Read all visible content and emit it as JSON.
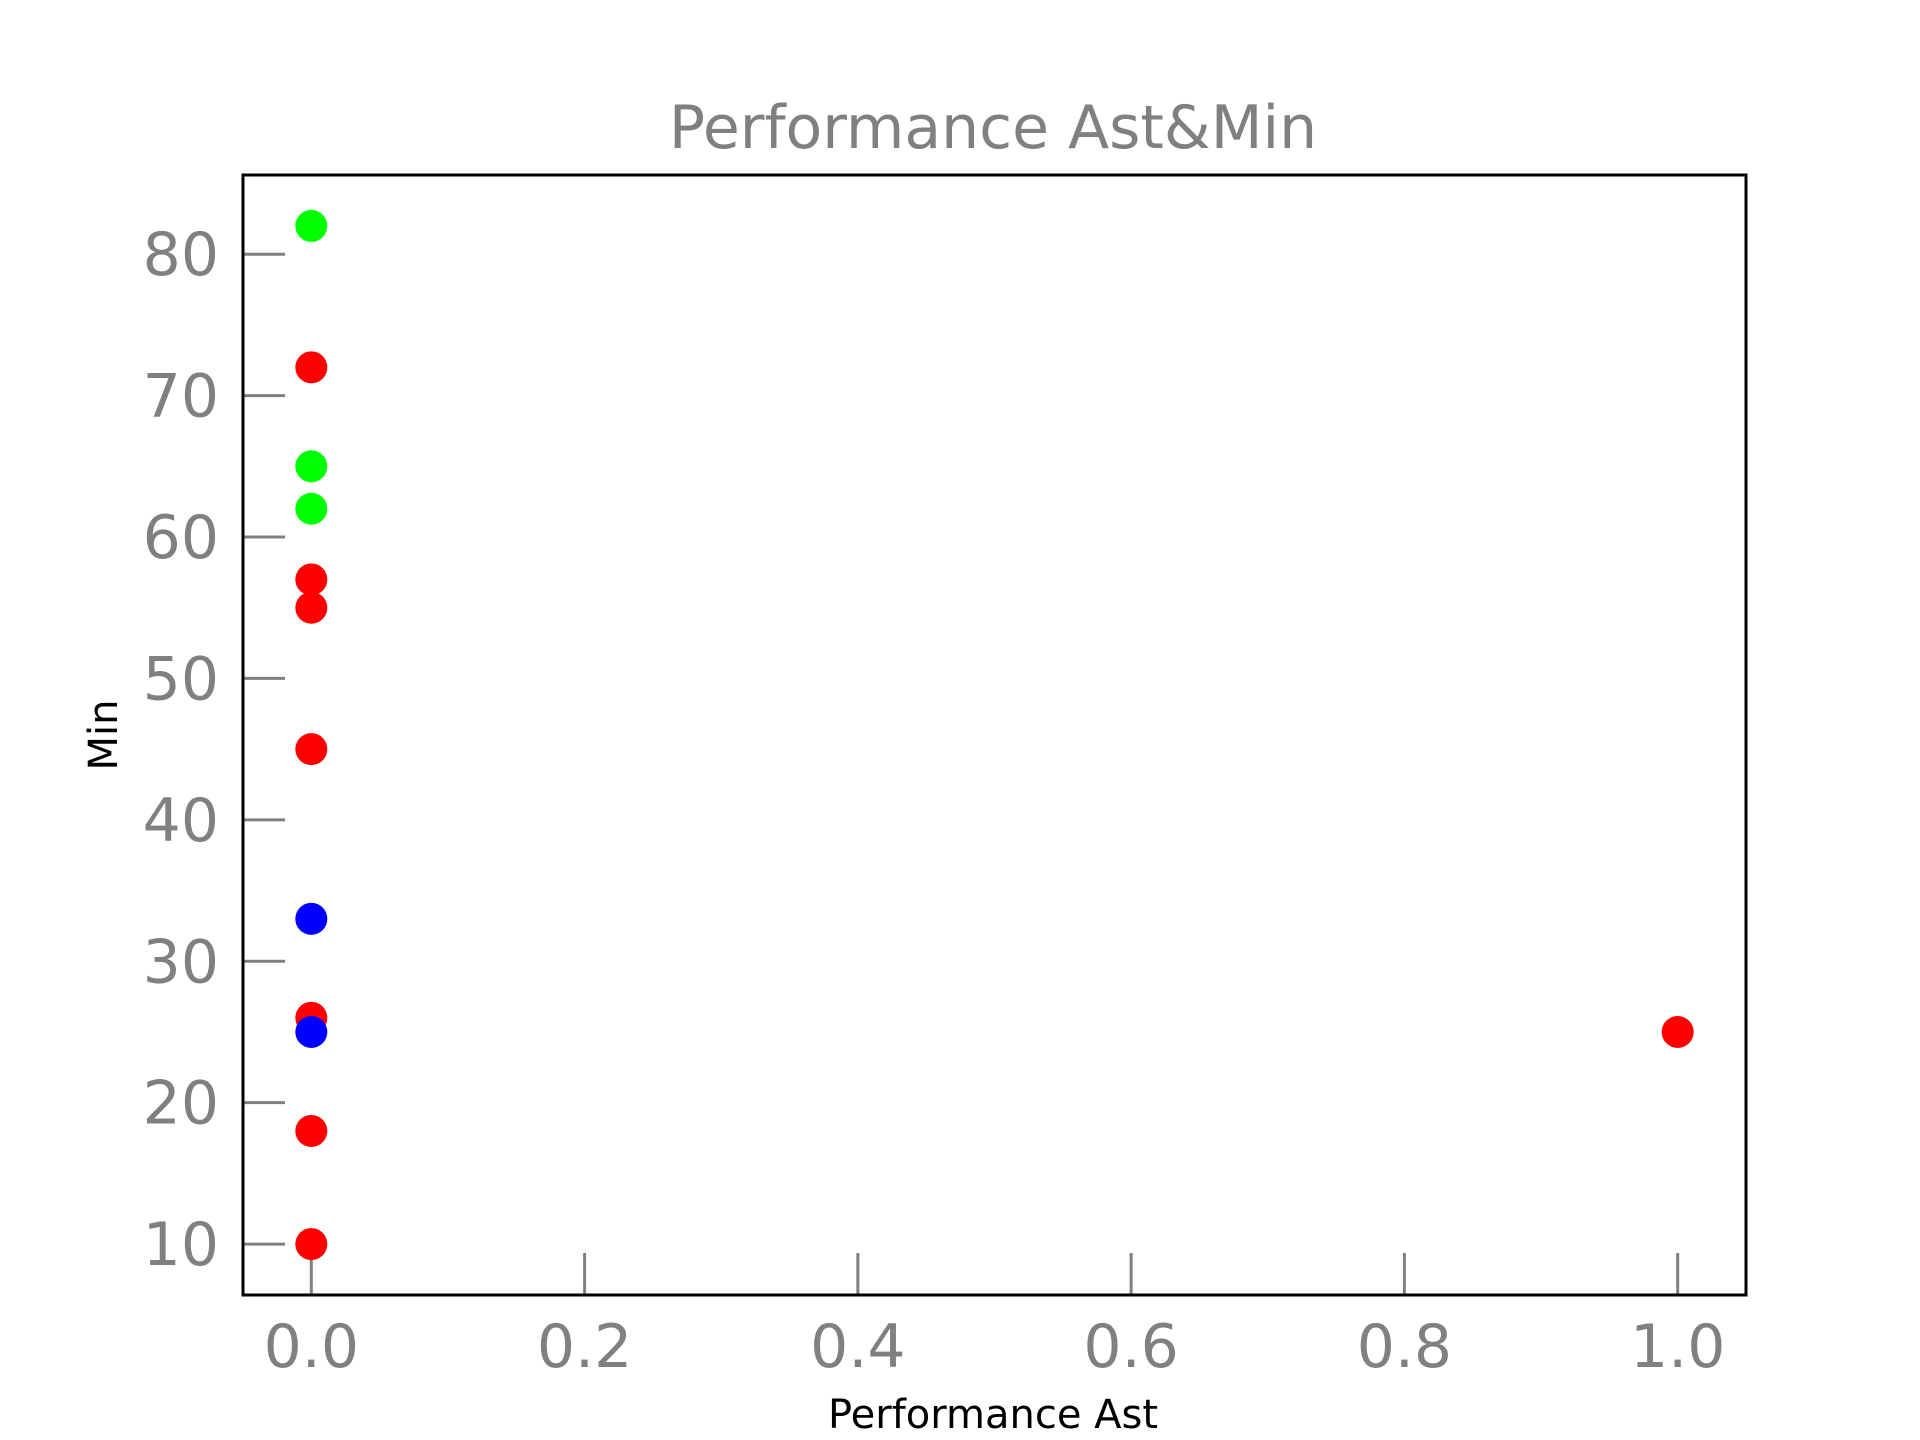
{
  "chart_data": {
    "type": "scatter",
    "title": "Performance Ast&Min",
    "xlabel": "Performance Ast",
    "ylabel": "Min",
    "xlim": [
      -0.05,
      1.05
    ],
    "ylim": [
      6.4,
      85.6
    ],
    "x_ticks": [
      0.0,
      0.2,
      0.4,
      0.6,
      0.8,
      1.0
    ],
    "x_tick_labels": [
      "0.0",
      "0.2",
      "0.4",
      "0.6",
      "0.8",
      "1.0"
    ],
    "y_ticks": [
      10,
      20,
      30,
      40,
      50,
      60,
      70,
      80
    ],
    "y_tick_labels": [
      "10",
      "20",
      "30",
      "40",
      "50",
      "60",
      "70",
      "80"
    ],
    "grid": false,
    "legend": "none",
    "points": [
      {
        "x": 0.0,
        "y": 82,
        "color": "#00ff00"
      },
      {
        "x": 0.0,
        "y": 72,
        "color": "#ff0000"
      },
      {
        "x": 0.0,
        "y": 65,
        "color": "#00ff00"
      },
      {
        "x": 0.0,
        "y": 62,
        "color": "#00ff00"
      },
      {
        "x": 0.0,
        "y": 57,
        "color": "#ff0000"
      },
      {
        "x": 0.0,
        "y": 55,
        "color": "#ff0000"
      },
      {
        "x": 0.0,
        "y": 45,
        "color": "#ff0000"
      },
      {
        "x": 0.0,
        "y": 33,
        "color": "#0000ff"
      },
      {
        "x": 0.0,
        "y": 26,
        "color": "#ff0000"
      },
      {
        "x": 0.0,
        "y": 25,
        "color": "#0000ff"
      },
      {
        "x": 0.0,
        "y": 18,
        "color": "#ff0000"
      },
      {
        "x": 0.0,
        "y": 10,
        "color": "#ff0000"
      },
      {
        "x": 1.0,
        "y": 25,
        "color": "#ff0000"
      }
    ]
  }
}
